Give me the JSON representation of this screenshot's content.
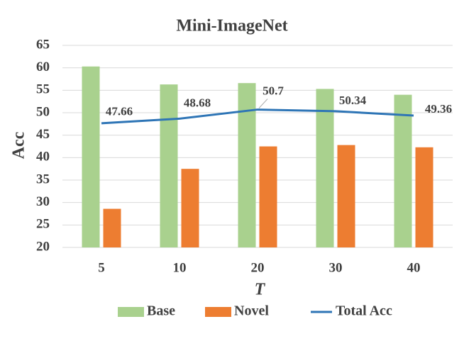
{
  "chart_data": {
    "type": "bar",
    "title": "Mini-ImageNet",
    "x_label": "T",
    "y_label": "Acc",
    "categories": [
      "5",
      "10",
      "20",
      "30",
      "40"
    ],
    "series": [
      {
        "name": "Base",
        "type": "bar",
        "color": "#a9d18e",
        "values": [
          60.3,
          56.3,
          56.6,
          55.3,
          54.0
        ]
      },
      {
        "name": "Novel",
        "type": "bar",
        "color": "#ed7d31",
        "values": [
          28.6,
          37.5,
          42.5,
          42.8,
          42.3
        ]
      },
      {
        "name": "Total Acc",
        "type": "line",
        "color": "#2e75b6",
        "values": [
          47.66,
          48.68,
          50.7,
          50.34,
          49.36
        ]
      }
    ],
    "ylim": [
      20,
      65
    ],
    "yticks": [
      20,
      25,
      30,
      35,
      40,
      45,
      50,
      55,
      60,
      65
    ],
    "grid": true,
    "legend": "bottom"
  }
}
